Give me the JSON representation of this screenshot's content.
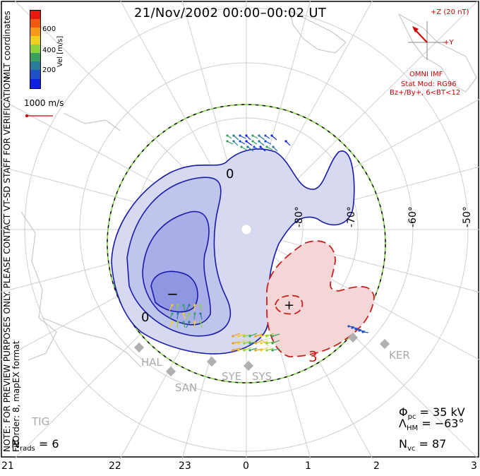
{
  "title": "21/Nov/2002 00:00–00:02 UT",
  "side_labels": {
    "mlt_coordinates": "MLT coordinates",
    "preview_note": "NOTE: FOR PREVIEW PURPOSES ONLY. PLEASE CONTACT VT-SD STAFF FOR VERIFICATION.",
    "fit_order": "FitOrder: 8, mapEX format"
  },
  "colorbar": {
    "label": "Vel [m/s]",
    "ticks": [
      "600",
      "400",
      "200"
    ],
    "colors": [
      "#e8180f",
      "#f05a10",
      "#f59a18",
      "#f2d020",
      "#8cd23c",
      "#3aa060",
      "#2a7a9a",
      "#2050c8",
      "#1020e0"
    ]
  },
  "reference_vector": {
    "label": "1000 m/s",
    "color": "#cc0000"
  },
  "imf": {
    "z_label": "+Z (20 nT)",
    "y_label": "+Y",
    "source": "OMNI IMF",
    "model": "Stat Mod: RG96",
    "condition": "Bz+/By+, 6<BT<12",
    "color": "#cc0000"
  },
  "latitude_labels": [
    "-80°",
    "-70°",
    "-60°",
    "-50°"
  ],
  "mlt_labels": [
    "21",
    "22",
    "23",
    "0",
    "1",
    "2",
    "3"
  ],
  "contours": {
    "negative_symbol": "−",
    "positive_symbol": "+",
    "labels": [
      "0",
      "0",
      "3"
    ],
    "negative_color": "#1a1aaa",
    "positive_color": "#cc2020",
    "negative_fill": "#d6d9f0",
    "negative_core_fill": "#a9aee8",
    "positive_fill": "#f5d6d6"
  },
  "stations": [
    "HAL",
    "SAN",
    "SYE",
    "SYS",
    "KER",
    "TIG"
  ],
  "stats": {
    "phi_pc": {
      "symbol": "Φ",
      "sub": "pc",
      "value": "= 35 kV"
    },
    "lambda_hm": {
      "symbol": "Λ",
      "sub": "HM",
      "value": "= −63°"
    },
    "n_vc": {
      "symbol": "N",
      "sub": "vc",
      "value": "= 87"
    },
    "n_rads": {
      "symbol": "N",
      "sub": "rads",
      "value": "= 6"
    }
  }
}
